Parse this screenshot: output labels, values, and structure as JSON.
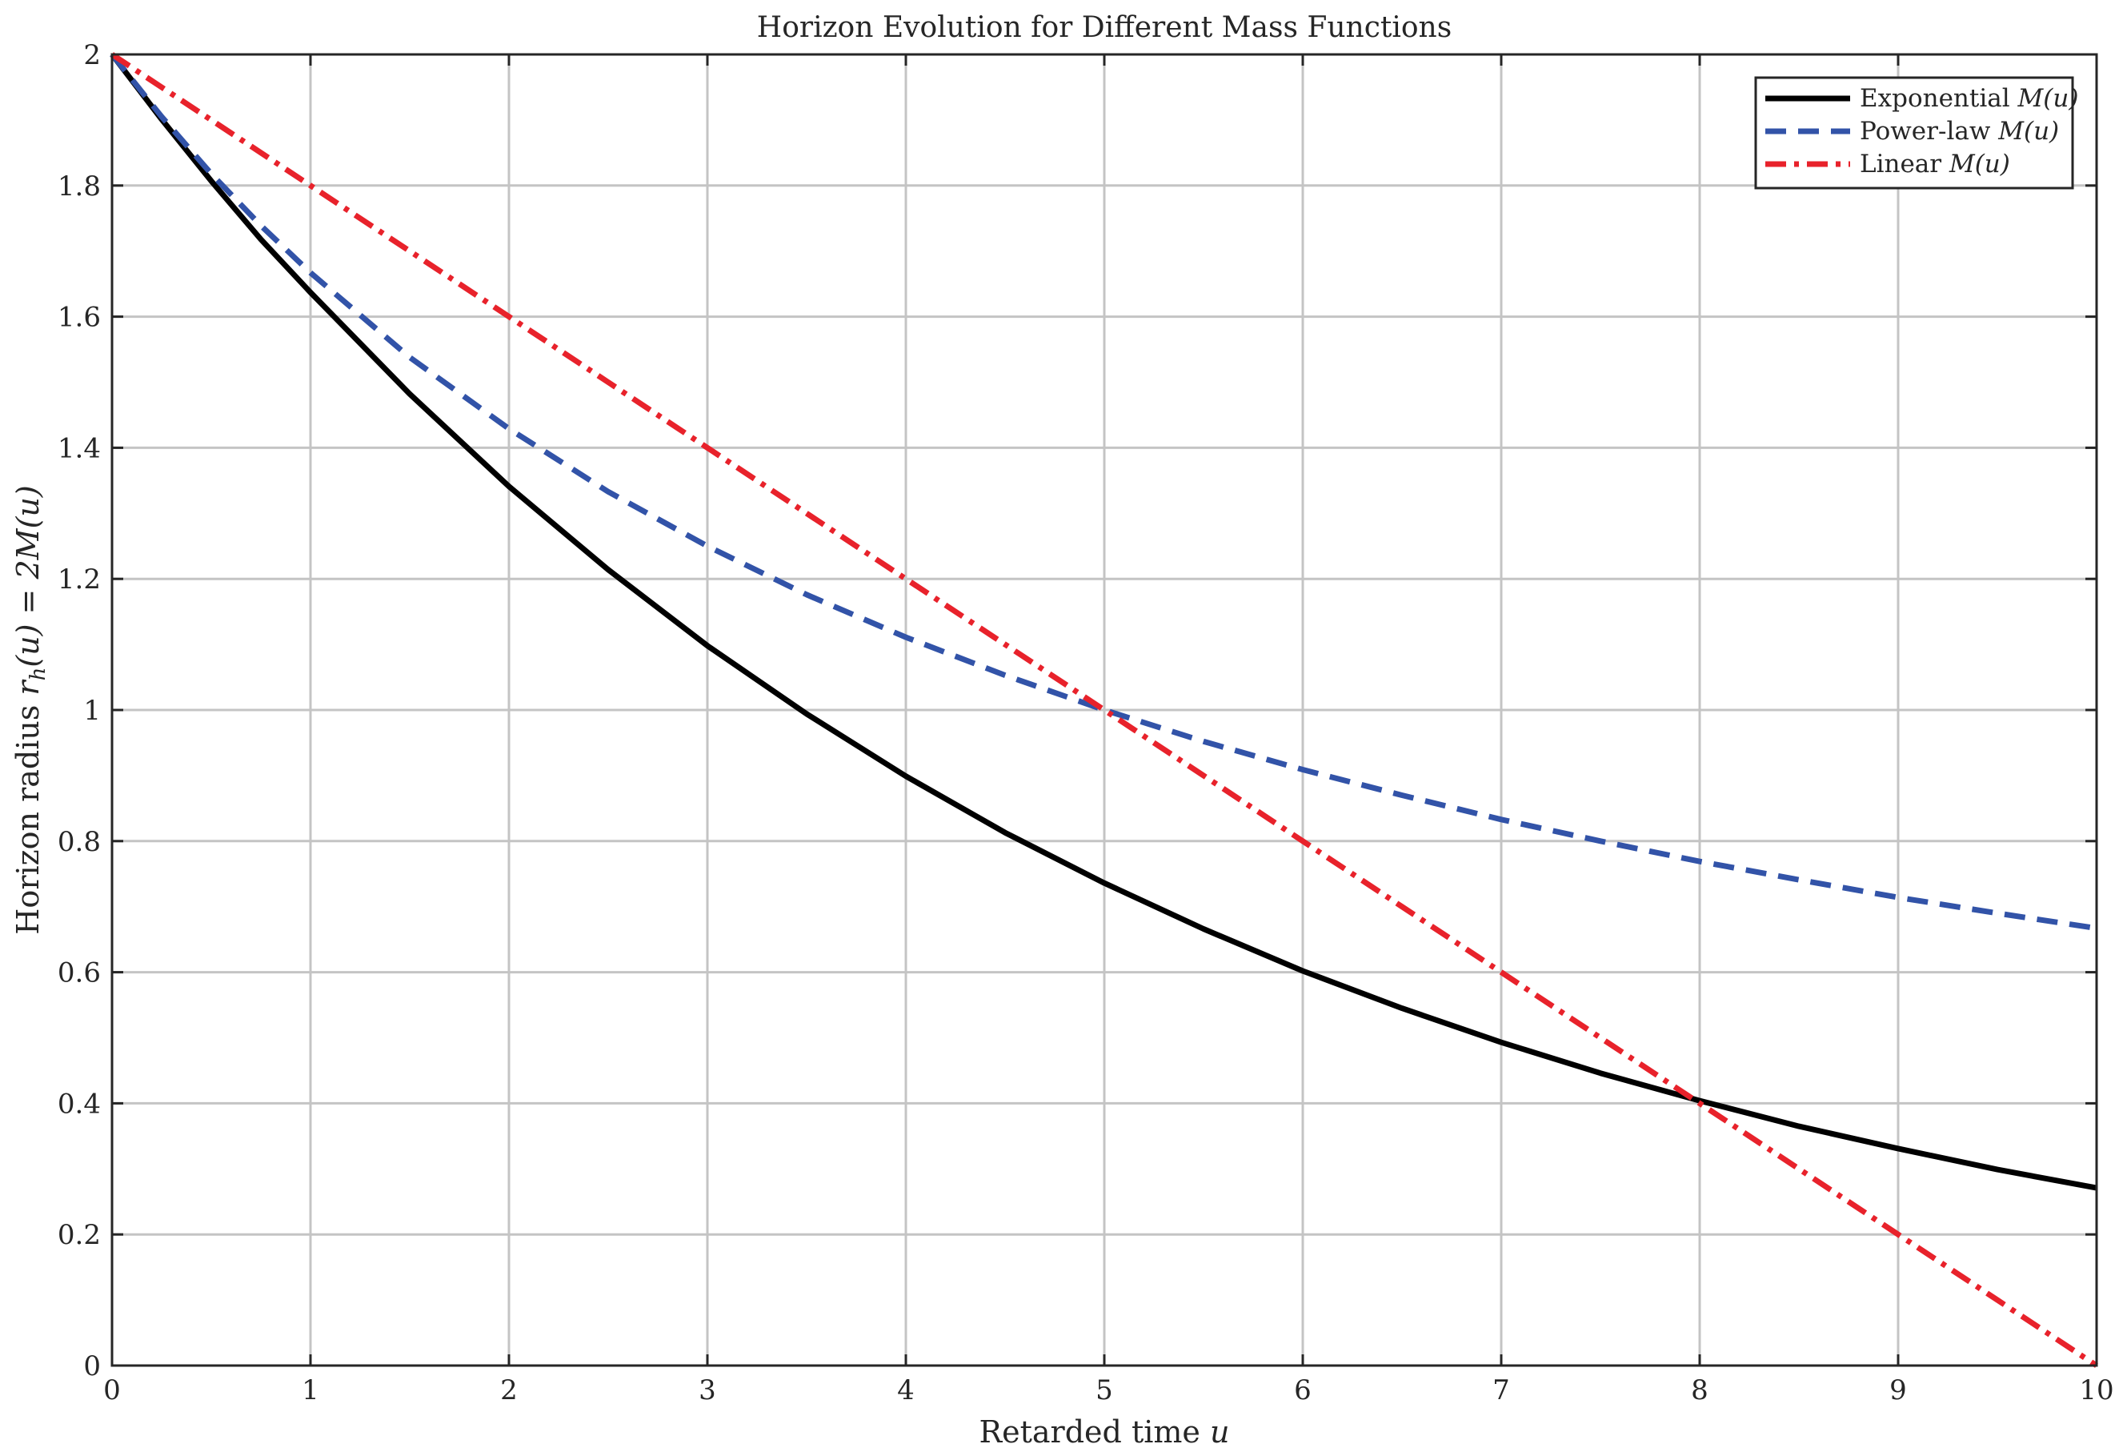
{
  "chart_data": {
    "type": "line",
    "title": "Horizon Evolution for Different Mass Functions",
    "xlabel": "Retarded time u",
    "xlabel_parts": {
      "text": "Retarded time ",
      "math": "u"
    },
    "ylabel": "Horizon radius r_h(u) = 2M(u)",
    "ylabel_parts": {
      "text": "Horizon radius ",
      "math": "r",
      "sub": "h",
      "tail": "(u) = 2M(u)"
    },
    "xlim": [
      0,
      10
    ],
    "ylim": [
      0,
      2
    ],
    "xticks": [
      0,
      1,
      2,
      3,
      4,
      5,
      6,
      7,
      8,
      9,
      10
    ],
    "xtick_labels": [
      "0",
      "1",
      "2",
      "3",
      "4",
      "5",
      "6",
      "7",
      "8",
      "9",
      "10"
    ],
    "yticks": [
      0,
      0.2,
      0.4,
      0.6,
      0.8,
      1,
      1.2,
      1.4,
      1.6,
      1.8,
      2
    ],
    "ytick_labels": [
      "0",
      "0.2",
      "0.4",
      "0.6",
      "0.8",
      "1",
      "1.2",
      "1.4",
      "1.6",
      "1.8",
      "2"
    ],
    "grid": true,
    "legend_position": "top-right",
    "x": [
      0,
      0.25,
      0.5,
      0.75,
      1,
      1.5,
      2,
      2.5,
      3,
      3.5,
      4,
      4.5,
      5,
      5.5,
      6,
      6.5,
      7,
      7.5,
      8,
      8.5,
      9,
      9.5,
      10
    ],
    "series": [
      {
        "name": "Exponential M(u)",
        "legend_text": "Exponential ",
        "legend_math": "M(u)",
        "color": "#000000",
        "dash": "solid",
        "values": [
          2.0,
          1.901,
          1.807,
          1.718,
          1.637,
          1.482,
          1.341,
          1.214,
          1.098,
          0.994,
          0.899,
          0.813,
          0.736,
          0.666,
          0.602,
          0.545,
          0.493,
          0.446,
          0.404,
          0.365,
          0.331,
          0.299,
          0.271
        ]
      },
      {
        "name": "Power-law M(u)",
        "legend_text": "Power-law ",
        "legend_math": "M(u)",
        "color": "#3253a8",
        "dash": "dashed",
        "values": [
          2.0,
          1.905,
          1.818,
          1.739,
          1.667,
          1.538,
          1.429,
          1.333,
          1.25,
          1.176,
          1.111,
          1.053,
          1.0,
          0.952,
          0.909,
          0.87,
          0.833,
          0.8,
          0.769,
          0.741,
          0.714,
          0.69,
          0.667
        ]
      },
      {
        "name": "Linear M(u)",
        "legend_text": "Linear ",
        "legend_math": "M(u)",
        "color": "#e8222b",
        "dash": "dashdot",
        "values": [
          2.0,
          1.95,
          1.9,
          1.85,
          1.8,
          1.7,
          1.6,
          1.5,
          1.4,
          1.3,
          1.2,
          1.1,
          1.0,
          0.9,
          0.8,
          0.7,
          0.6,
          0.5,
          0.4,
          0.3,
          0.2,
          0.1,
          0.0
        ]
      }
    ]
  }
}
